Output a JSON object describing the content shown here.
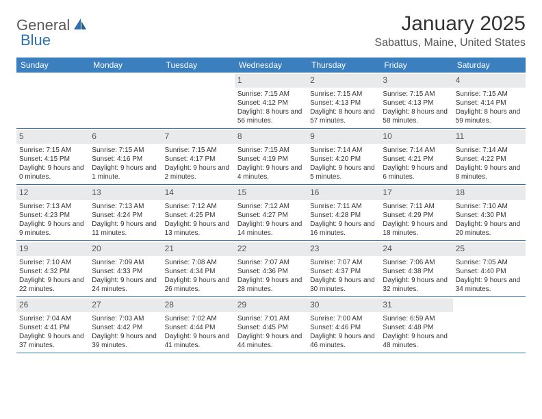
{
  "logo": {
    "text1": "General",
    "text2": "Blue"
  },
  "title": "January 2025",
  "location": "Sabattus, Maine, United States",
  "colors": {
    "header_bg": "#3b7fbf",
    "header_text": "#ffffff",
    "daynum_bg": "#e8eaec",
    "border": "#2f6fab",
    "logo_gray": "#5a5a5a",
    "logo_blue": "#2f6fab"
  },
  "fonts": {
    "title_size": 30,
    "location_size": 16,
    "head_size": 12,
    "body_size": 10
  },
  "dayHeaders": [
    "Sunday",
    "Monday",
    "Tuesday",
    "Wednesday",
    "Thursday",
    "Friday",
    "Saturday"
  ],
  "weeks": [
    [
      {
        "n": "",
        "sunrise": "",
        "sunset": "",
        "daylight": ""
      },
      {
        "n": "",
        "sunrise": "",
        "sunset": "",
        "daylight": ""
      },
      {
        "n": "",
        "sunrise": "",
        "sunset": "",
        "daylight": ""
      },
      {
        "n": "1",
        "sunrise": "Sunrise: 7:15 AM",
        "sunset": "Sunset: 4:12 PM",
        "daylight": "Daylight: 8 hours and 56 minutes."
      },
      {
        "n": "2",
        "sunrise": "Sunrise: 7:15 AM",
        "sunset": "Sunset: 4:13 PM",
        "daylight": "Daylight: 8 hours and 57 minutes."
      },
      {
        "n": "3",
        "sunrise": "Sunrise: 7:15 AM",
        "sunset": "Sunset: 4:13 PM",
        "daylight": "Daylight: 8 hours and 58 minutes."
      },
      {
        "n": "4",
        "sunrise": "Sunrise: 7:15 AM",
        "sunset": "Sunset: 4:14 PM",
        "daylight": "Daylight: 8 hours and 59 minutes."
      }
    ],
    [
      {
        "n": "5",
        "sunrise": "Sunrise: 7:15 AM",
        "sunset": "Sunset: 4:15 PM",
        "daylight": "Daylight: 9 hours and 0 minutes."
      },
      {
        "n": "6",
        "sunrise": "Sunrise: 7:15 AM",
        "sunset": "Sunset: 4:16 PM",
        "daylight": "Daylight: 9 hours and 1 minute."
      },
      {
        "n": "7",
        "sunrise": "Sunrise: 7:15 AM",
        "sunset": "Sunset: 4:17 PM",
        "daylight": "Daylight: 9 hours and 2 minutes."
      },
      {
        "n": "8",
        "sunrise": "Sunrise: 7:15 AM",
        "sunset": "Sunset: 4:19 PM",
        "daylight": "Daylight: 9 hours and 4 minutes."
      },
      {
        "n": "9",
        "sunrise": "Sunrise: 7:14 AM",
        "sunset": "Sunset: 4:20 PM",
        "daylight": "Daylight: 9 hours and 5 minutes."
      },
      {
        "n": "10",
        "sunrise": "Sunrise: 7:14 AM",
        "sunset": "Sunset: 4:21 PM",
        "daylight": "Daylight: 9 hours and 6 minutes."
      },
      {
        "n": "11",
        "sunrise": "Sunrise: 7:14 AM",
        "sunset": "Sunset: 4:22 PM",
        "daylight": "Daylight: 9 hours and 8 minutes."
      }
    ],
    [
      {
        "n": "12",
        "sunrise": "Sunrise: 7:13 AM",
        "sunset": "Sunset: 4:23 PM",
        "daylight": "Daylight: 9 hours and 9 minutes."
      },
      {
        "n": "13",
        "sunrise": "Sunrise: 7:13 AM",
        "sunset": "Sunset: 4:24 PM",
        "daylight": "Daylight: 9 hours and 11 minutes."
      },
      {
        "n": "14",
        "sunrise": "Sunrise: 7:12 AM",
        "sunset": "Sunset: 4:25 PM",
        "daylight": "Daylight: 9 hours and 13 minutes."
      },
      {
        "n": "15",
        "sunrise": "Sunrise: 7:12 AM",
        "sunset": "Sunset: 4:27 PM",
        "daylight": "Daylight: 9 hours and 14 minutes."
      },
      {
        "n": "16",
        "sunrise": "Sunrise: 7:11 AM",
        "sunset": "Sunset: 4:28 PM",
        "daylight": "Daylight: 9 hours and 16 minutes."
      },
      {
        "n": "17",
        "sunrise": "Sunrise: 7:11 AM",
        "sunset": "Sunset: 4:29 PM",
        "daylight": "Daylight: 9 hours and 18 minutes."
      },
      {
        "n": "18",
        "sunrise": "Sunrise: 7:10 AM",
        "sunset": "Sunset: 4:30 PM",
        "daylight": "Daylight: 9 hours and 20 minutes."
      }
    ],
    [
      {
        "n": "19",
        "sunrise": "Sunrise: 7:10 AM",
        "sunset": "Sunset: 4:32 PM",
        "daylight": "Daylight: 9 hours and 22 minutes."
      },
      {
        "n": "20",
        "sunrise": "Sunrise: 7:09 AM",
        "sunset": "Sunset: 4:33 PM",
        "daylight": "Daylight: 9 hours and 24 minutes."
      },
      {
        "n": "21",
        "sunrise": "Sunrise: 7:08 AM",
        "sunset": "Sunset: 4:34 PM",
        "daylight": "Daylight: 9 hours and 26 minutes."
      },
      {
        "n": "22",
        "sunrise": "Sunrise: 7:07 AM",
        "sunset": "Sunset: 4:36 PM",
        "daylight": "Daylight: 9 hours and 28 minutes."
      },
      {
        "n": "23",
        "sunrise": "Sunrise: 7:07 AM",
        "sunset": "Sunset: 4:37 PM",
        "daylight": "Daylight: 9 hours and 30 minutes."
      },
      {
        "n": "24",
        "sunrise": "Sunrise: 7:06 AM",
        "sunset": "Sunset: 4:38 PM",
        "daylight": "Daylight: 9 hours and 32 minutes."
      },
      {
        "n": "25",
        "sunrise": "Sunrise: 7:05 AM",
        "sunset": "Sunset: 4:40 PM",
        "daylight": "Daylight: 9 hours and 34 minutes."
      }
    ],
    [
      {
        "n": "26",
        "sunrise": "Sunrise: 7:04 AM",
        "sunset": "Sunset: 4:41 PM",
        "daylight": "Daylight: 9 hours and 37 minutes."
      },
      {
        "n": "27",
        "sunrise": "Sunrise: 7:03 AM",
        "sunset": "Sunset: 4:42 PM",
        "daylight": "Daylight: 9 hours and 39 minutes."
      },
      {
        "n": "28",
        "sunrise": "Sunrise: 7:02 AM",
        "sunset": "Sunset: 4:44 PM",
        "daylight": "Daylight: 9 hours and 41 minutes."
      },
      {
        "n": "29",
        "sunrise": "Sunrise: 7:01 AM",
        "sunset": "Sunset: 4:45 PM",
        "daylight": "Daylight: 9 hours and 44 minutes."
      },
      {
        "n": "30",
        "sunrise": "Sunrise: 7:00 AM",
        "sunset": "Sunset: 4:46 PM",
        "daylight": "Daylight: 9 hours and 46 minutes."
      },
      {
        "n": "31",
        "sunrise": "Sunrise: 6:59 AM",
        "sunset": "Sunset: 4:48 PM",
        "daylight": "Daylight: 9 hours and 48 minutes."
      },
      {
        "n": "",
        "sunrise": "",
        "sunset": "",
        "daylight": ""
      }
    ]
  ]
}
